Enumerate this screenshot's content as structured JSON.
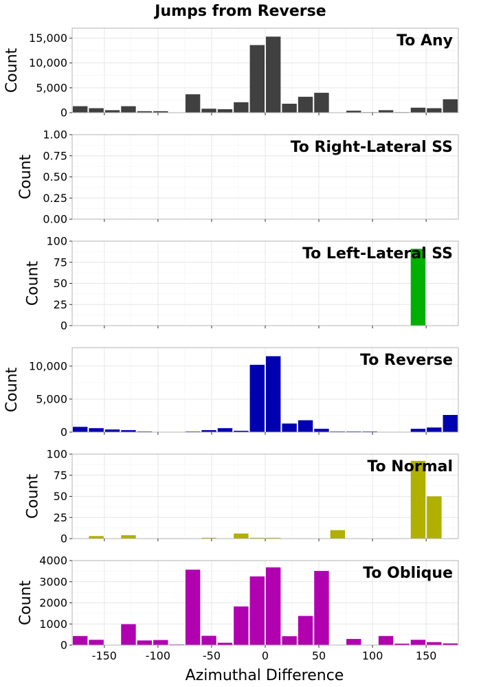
{
  "title": "Jumps from Reverse",
  "chart_data": {
    "type": "bar",
    "xlabel": "Azimuthal Difference",
    "xlim": [
      -180,
      180
    ],
    "xticks": [
      "-150",
      "-100",
      "-50",
      "0",
      "50",
      "100",
      "150"
    ],
    "xtick_values": [
      -150,
      -100,
      -50,
      0,
      50,
      100,
      150
    ],
    "x": [
      -172.5,
      -157.5,
      -142.5,
      -127.5,
      -112.5,
      -97.5,
      -82.5,
      -67.5,
      -52.5,
      -37.5,
      -22.5,
      -7.5,
      7.5,
      22.5,
      37.5,
      52.5,
      67.5,
      82.5,
      97.5,
      112.5,
      127.5,
      142.5,
      157.5,
      172.5
    ],
    "grid": true,
    "panels": [
      {
        "name": "To Any",
        "ylabel": "Count",
        "color": "#404040",
        "ylim": [
          0,
          17000
        ],
        "yticks": [
          0,
          5000,
          10000,
          15000
        ],
        "ytick_labels": [
          "0",
          "5,000",
          "10,000",
          "15,000"
        ],
        "values": [
          1300,
          900,
          500,
          1300,
          300,
          300,
          0,
          3700,
          800,
          700,
          2100,
          13600,
          15300,
          1800,
          3200,
          4000,
          0,
          400,
          100,
          500,
          100,
          1000,
          900,
          2700
        ]
      },
      {
        "name": "To Right-Lateral SS",
        "ylabel": "Count",
        "color": "#808080",
        "ylim": [
          0,
          1
        ],
        "yticks": [
          0,
          0.25,
          0.5,
          0.75,
          1
        ],
        "ytick_labels": [
          "0.00",
          "0.25",
          "0.50",
          "0.75",
          "1.00"
        ],
        "values": [
          0,
          0,
          0,
          0,
          0,
          0,
          0,
          0,
          0,
          0,
          0,
          0,
          0,
          0,
          0,
          0,
          0,
          0,
          0,
          0,
          0,
          0,
          0,
          0
        ]
      },
      {
        "name": "To Left-Lateral SS",
        "ylabel": "Count",
        "color": "#00b000",
        "ylim": [
          0,
          100
        ],
        "yticks": [
          0,
          25,
          50,
          75,
          100
        ],
        "ytick_labels": [
          "0",
          "25",
          "50",
          "75",
          "100"
        ],
        "values": [
          0,
          0,
          0,
          0,
          0,
          0,
          0,
          0,
          0,
          0,
          0,
          0,
          0,
          0,
          0,
          0,
          0,
          0,
          0,
          0,
          0,
          91,
          0,
          0
        ]
      },
      {
        "name": "To Reverse",
        "ylabel": "Count",
        "color": "#0000b0",
        "ylim": [
          0,
          12800
        ],
        "yticks": [
          0,
          5000,
          10000
        ],
        "ytick_labels": [
          "0",
          "5,000",
          "10,000"
        ],
        "values": [
          800,
          600,
          400,
          300,
          100,
          50,
          50,
          100,
          300,
          600,
          200,
          10200,
          11500,
          1300,
          1800,
          500,
          100,
          100,
          100,
          50,
          50,
          500,
          700,
          2600
        ]
      },
      {
        "name": "To Normal",
        "ylabel": "Count",
        "color": "#b0b000",
        "ylim": [
          0,
          100
        ],
        "yticks": [
          0,
          25,
          50,
          75,
          100
        ],
        "ytick_labels": [
          "0",
          "25",
          "50",
          "75",
          "100"
        ],
        "values": [
          0,
          3,
          0,
          4,
          0,
          0,
          0,
          0,
          1,
          0,
          6,
          1,
          1,
          0,
          0,
          0,
          10,
          0,
          0,
          0,
          0,
          92,
          50,
          0
        ]
      },
      {
        "name": "To Oblique",
        "ylabel": "Count",
        "color": "#b000b0",
        "ylim": [
          0,
          4000
        ],
        "yticks": [
          0,
          1000,
          2000,
          3000,
          4000
        ],
        "ytick_labels": [
          "0",
          "1000",
          "2000",
          "3000",
          "4000"
        ],
        "values": [
          430,
          250,
          0,
          990,
          220,
          240,
          30,
          3570,
          440,
          110,
          1830,
          3250,
          3680,
          420,
          1380,
          3510,
          0,
          290,
          0,
          430,
          70,
          250,
          140,
          80
        ]
      }
    ]
  }
}
